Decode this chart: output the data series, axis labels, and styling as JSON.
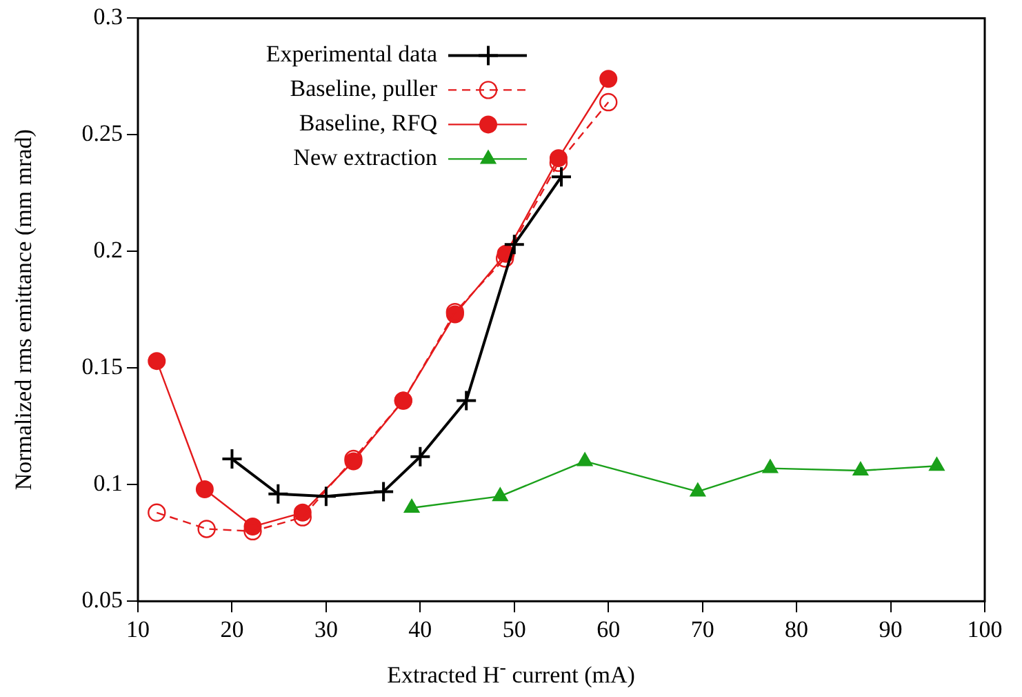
{
  "chart_data": {
    "type": "line",
    "xlabel": "Extracted H$^{-}$ current (mA)",
    "ylabel": "Normalized rms emittance (mm mrad)",
    "xlim": [
      10,
      100
    ],
    "xticks": [
      10,
      20,
      30,
      40,
      50,
      60,
      70,
      80,
      90,
      100
    ],
    "ylim": [
      0.05,
      0.3
    ],
    "yticks": [
      0.05,
      0.1,
      0.15,
      0.2,
      0.25,
      0.3
    ],
    "grid": false,
    "legend": "top left",
    "series": [
      {
        "name": "Experimental data",
        "color": "#000000",
        "marker": "cross",
        "line_style": "solid",
        "x": [
          20,
          24.9,
          30,
          36.1,
          40,
          44.9,
          50,
          55
        ],
        "values": [
          0.111,
          0.096,
          0.095,
          0.097,
          0.112,
          0.136,
          0.203,
          0.232
        ]
      },
      {
        "name": "Baseline, puller",
        "color": "#e41a1c",
        "marker": "circle",
        "line_style": "dashed",
        "x": [
          12,
          17.3,
          22.2,
          27.5,
          32.9,
          38.2,
          43.7,
          49,
          54.7,
          60
        ],
        "values": [
          0.088,
          0.081,
          0.08,
          0.086,
          0.111,
          0.136,
          0.174,
          0.197,
          0.238,
          0.264
        ]
      },
      {
        "name": "Baseline, RFQ",
        "color": "#e41a1c",
        "marker": "circle",
        "line_style": "solid",
        "x": [
          12,
          17.1,
          22.2,
          27.5,
          32.9,
          38.2,
          43.7,
          49.1,
          54.7,
          60
        ],
        "values": [
          0.153,
          0.098,
          0.082,
          0.088,
          0.11,
          0.136,
          0.173,
          0.199,
          0.24,
          0.274
        ]
      },
      {
        "name": "New extraction",
        "color": "#1aa01a",
        "marker": "triangle",
        "line_style": "solid",
        "x": [
          39.1,
          48.5,
          57.5,
          69.5,
          77.2,
          86.8,
          94.9
        ],
        "values": [
          0.09,
          0.095,
          0.11,
          0.097,
          0.107,
          0.106,
          0.108
        ]
      }
    ]
  }
}
